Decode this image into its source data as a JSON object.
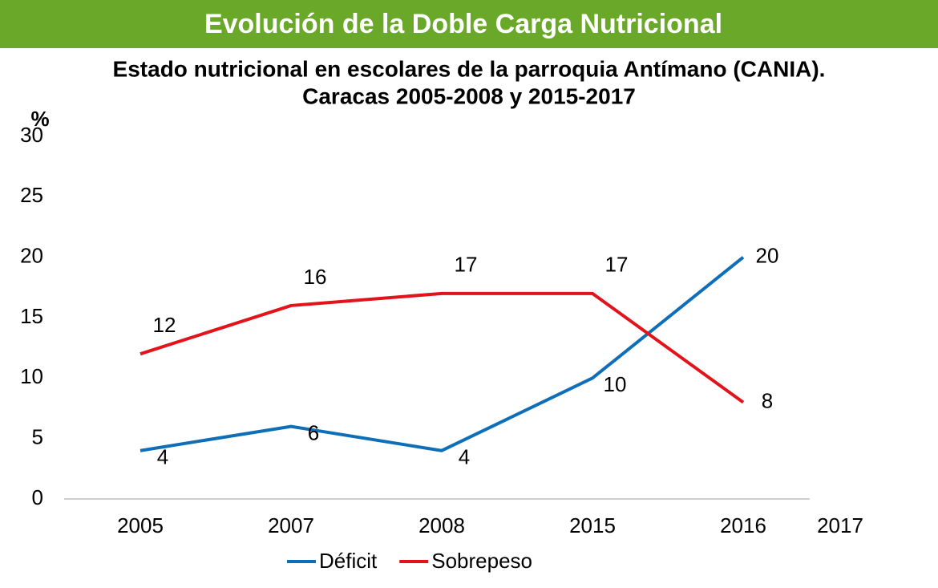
{
  "header": {
    "title": "Evolución de la Doble Carga Nutricional"
  },
  "chart_data": {
    "type": "line",
    "title": [
      "Estado nutricional en escolares de la parroquia Antímano (CANIA).",
      "Caracas 2005-2008 y 2015-2017"
    ],
    "y_label": "%",
    "categories": [
      "2005",
      "2007",
      "2008",
      "2015",
      "2016",
      "2017"
    ],
    "series": [
      {
        "name": "Déficit",
        "color": "#0e6fb8",
        "values": [
          4,
          6,
          4,
          10,
          20,
          null
        ]
      },
      {
        "name": "Sobrepeso",
        "color": "#e3131b",
        "values": [
          12,
          16,
          17,
          17,
          8,
          null
        ]
      }
    ],
    "ylim": [
      0,
      30
    ],
    "yticks": [
      0,
      5,
      10,
      15,
      20,
      25,
      30
    ],
    "legend": "bottom"
  }
}
